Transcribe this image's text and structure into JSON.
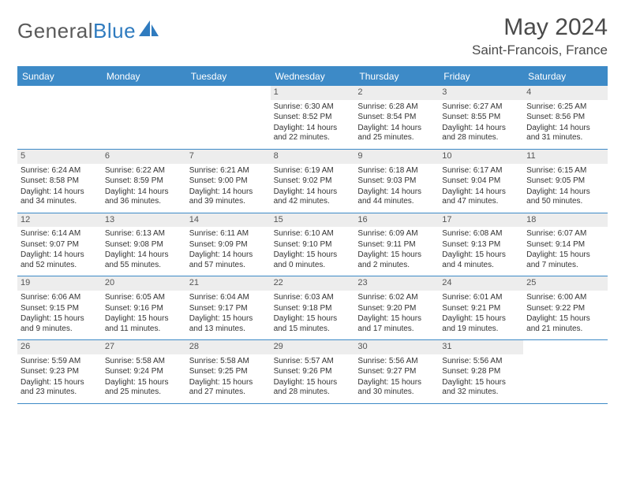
{
  "brand": {
    "word1": "General",
    "word2": "Blue"
  },
  "title": "May 2024",
  "location": "Saint-Francois, France",
  "colors": {
    "accent": "#3d8ac7",
    "daynum_bg": "#ededed",
    "text": "#333333",
    "header_text": "#4a4a4a"
  },
  "day_headers": [
    "Sunday",
    "Monday",
    "Tuesday",
    "Wednesday",
    "Thursday",
    "Friday",
    "Saturday"
  ],
  "weeks": [
    [
      null,
      null,
      null,
      {
        "n": "1",
        "sunrise": "6:30 AM",
        "sunset": "8:52 PM",
        "dh": 14,
        "dm": 22
      },
      {
        "n": "2",
        "sunrise": "6:28 AM",
        "sunset": "8:54 PM",
        "dh": 14,
        "dm": 25
      },
      {
        "n": "3",
        "sunrise": "6:27 AM",
        "sunset": "8:55 PM",
        "dh": 14,
        "dm": 28
      },
      {
        "n": "4",
        "sunrise": "6:25 AM",
        "sunset": "8:56 PM",
        "dh": 14,
        "dm": 31
      }
    ],
    [
      {
        "n": "5",
        "sunrise": "6:24 AM",
        "sunset": "8:58 PM",
        "dh": 14,
        "dm": 34
      },
      {
        "n": "6",
        "sunrise": "6:22 AM",
        "sunset": "8:59 PM",
        "dh": 14,
        "dm": 36
      },
      {
        "n": "7",
        "sunrise": "6:21 AM",
        "sunset": "9:00 PM",
        "dh": 14,
        "dm": 39
      },
      {
        "n": "8",
        "sunrise": "6:19 AM",
        "sunset": "9:02 PM",
        "dh": 14,
        "dm": 42
      },
      {
        "n": "9",
        "sunrise": "6:18 AM",
        "sunset": "9:03 PM",
        "dh": 14,
        "dm": 44
      },
      {
        "n": "10",
        "sunrise": "6:17 AM",
        "sunset": "9:04 PM",
        "dh": 14,
        "dm": 47
      },
      {
        "n": "11",
        "sunrise": "6:15 AM",
        "sunset": "9:05 PM",
        "dh": 14,
        "dm": 50
      }
    ],
    [
      {
        "n": "12",
        "sunrise": "6:14 AM",
        "sunset": "9:07 PM",
        "dh": 14,
        "dm": 52
      },
      {
        "n": "13",
        "sunrise": "6:13 AM",
        "sunset": "9:08 PM",
        "dh": 14,
        "dm": 55
      },
      {
        "n": "14",
        "sunrise": "6:11 AM",
        "sunset": "9:09 PM",
        "dh": 14,
        "dm": 57
      },
      {
        "n": "15",
        "sunrise": "6:10 AM",
        "sunset": "9:10 PM",
        "dh": 15,
        "dm": 0
      },
      {
        "n": "16",
        "sunrise": "6:09 AM",
        "sunset": "9:11 PM",
        "dh": 15,
        "dm": 2
      },
      {
        "n": "17",
        "sunrise": "6:08 AM",
        "sunset": "9:13 PM",
        "dh": 15,
        "dm": 4
      },
      {
        "n": "18",
        "sunrise": "6:07 AM",
        "sunset": "9:14 PM",
        "dh": 15,
        "dm": 7
      }
    ],
    [
      {
        "n": "19",
        "sunrise": "6:06 AM",
        "sunset": "9:15 PM",
        "dh": 15,
        "dm": 9
      },
      {
        "n": "20",
        "sunrise": "6:05 AM",
        "sunset": "9:16 PM",
        "dh": 15,
        "dm": 11
      },
      {
        "n": "21",
        "sunrise": "6:04 AM",
        "sunset": "9:17 PM",
        "dh": 15,
        "dm": 13
      },
      {
        "n": "22",
        "sunrise": "6:03 AM",
        "sunset": "9:18 PM",
        "dh": 15,
        "dm": 15
      },
      {
        "n": "23",
        "sunrise": "6:02 AM",
        "sunset": "9:20 PM",
        "dh": 15,
        "dm": 17
      },
      {
        "n": "24",
        "sunrise": "6:01 AM",
        "sunset": "9:21 PM",
        "dh": 15,
        "dm": 19
      },
      {
        "n": "25",
        "sunrise": "6:00 AM",
        "sunset": "9:22 PM",
        "dh": 15,
        "dm": 21
      }
    ],
    [
      {
        "n": "26",
        "sunrise": "5:59 AM",
        "sunset": "9:23 PM",
        "dh": 15,
        "dm": 23
      },
      {
        "n": "27",
        "sunrise": "5:58 AM",
        "sunset": "9:24 PM",
        "dh": 15,
        "dm": 25
      },
      {
        "n": "28",
        "sunrise": "5:58 AM",
        "sunset": "9:25 PM",
        "dh": 15,
        "dm": 27
      },
      {
        "n": "29",
        "sunrise": "5:57 AM",
        "sunset": "9:26 PM",
        "dh": 15,
        "dm": 28
      },
      {
        "n": "30",
        "sunrise": "5:56 AM",
        "sunset": "9:27 PM",
        "dh": 15,
        "dm": 30
      },
      {
        "n": "31",
        "sunrise": "5:56 AM",
        "sunset": "9:28 PM",
        "dh": 15,
        "dm": 32
      },
      null
    ]
  ],
  "labels": {
    "sunrise": "Sunrise:",
    "sunset": "Sunset:",
    "daylight": "Daylight:",
    "hours": "hours",
    "and": "and",
    "minutes": "minutes."
  }
}
